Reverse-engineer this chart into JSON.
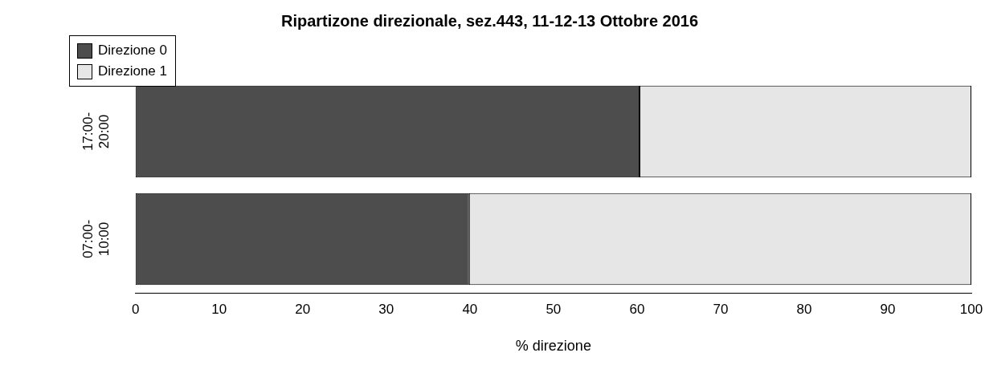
{
  "chart_data": {
    "type": "bar",
    "orientation": "horizontal",
    "stacked": true,
    "title": "Ripartizone direzionale, sez.443, 11-12-13 Ottobre 2016",
    "xlabel": "% direzione",
    "categories": [
      "17:00-20:00",
      "07:00-10:00"
    ],
    "series": [
      {
        "name": "Direzione 0",
        "color": "#4d4d4d",
        "values": [
          60.3,
          39.9
        ]
      },
      {
        "name": "Direzione 1",
        "color": "#e6e6e6",
        "values": [
          39.7,
          60.1
        ]
      }
    ],
    "xlim": [
      0,
      100
    ],
    "xticks": [
      0,
      10,
      20,
      30,
      40,
      50,
      60,
      70,
      80,
      90,
      100
    ],
    "grid": false,
    "legend": "top left"
  }
}
